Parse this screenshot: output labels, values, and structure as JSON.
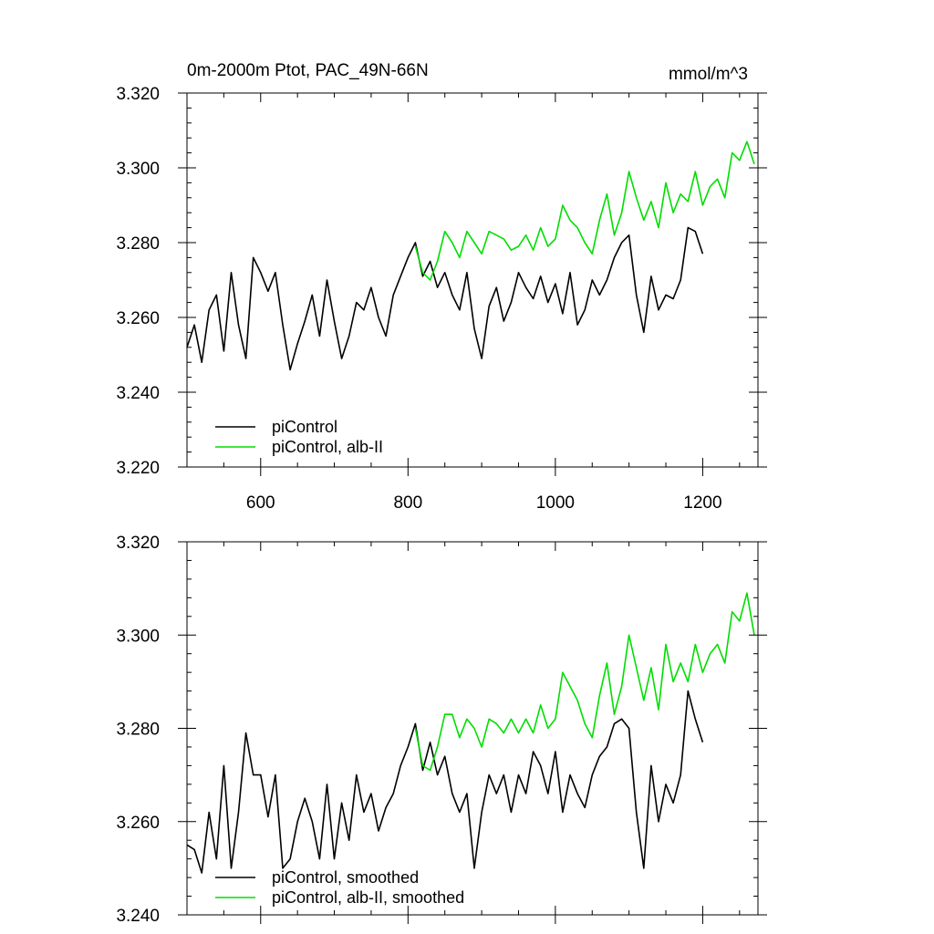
{
  "chart_data": [
    {
      "type": "line",
      "title": "0m-2000m Ptot, PAC_49N-66N",
      "units": "mmol/m^3",
      "xlim": [
        500,
        1275
      ],
      "ylim": [
        3.22,
        3.32
      ],
      "x_ticks": [
        600,
        800,
        1000,
        1200
      ],
      "x_tick_labels": [
        "600",
        "800",
        "1000",
        "1200"
      ],
      "y_ticks": [
        3.22,
        3.24,
        3.26,
        3.28,
        3.3,
        3.32
      ],
      "y_tick_labels": [
        "3.220",
        "3.240",
        "3.260",
        "3.280",
        "3.300",
        "3.320"
      ],
      "legend_placement": "bottom-left",
      "series": [
        {
          "name": "piControl",
          "color": "#000000",
          "x": [
            500,
            510,
            520,
            530,
            540,
            550,
            560,
            570,
            580,
            590,
            600,
            610,
            620,
            630,
            640,
            650,
            660,
            670,
            680,
            690,
            700,
            710,
            720,
            730,
            740,
            750,
            760,
            770,
            780,
            790,
            800,
            810,
            820,
            830,
            840,
            850,
            860,
            870,
            880,
            890,
            900,
            910,
            920,
            930,
            940,
            950,
            960,
            970,
            980,
            990,
            1000,
            1010,
            1020,
            1030,
            1040,
            1050,
            1060,
            1070,
            1080,
            1090,
            1100,
            1110,
            1120,
            1130,
            1140,
            1150,
            1160,
            1170,
            1180,
            1190,
            1200
          ],
          "values": [
            3.252,
            3.258,
            3.248,
            3.262,
            3.266,
            3.251,
            3.272,
            3.258,
            3.249,
            3.276,
            3.272,
            3.267,
            3.272,
            3.258,
            3.246,
            3.253,
            3.259,
            3.266,
            3.255,
            3.27,
            3.259,
            3.249,
            3.255,
            3.264,
            3.262,
            3.268,
            3.26,
            3.255,
            3.266,
            3.271,
            3.276,
            3.28,
            3.271,
            3.275,
            3.268,
            3.272,
            3.266,
            3.262,
            3.272,
            3.257,
            3.249,
            3.263,
            3.268,
            3.259,
            3.264,
            3.272,
            3.268,
            3.265,
            3.271,
            3.264,
            3.269,
            3.261,
            3.272,
            3.258,
            3.262,
            3.27,
            3.266,
            3.27,
            3.276,
            3.28,
            3.282,
            3.266,
            3.256,
            3.271,
            3.262,
            3.266,
            3.265,
            3.27,
            3.284,
            3.283,
            3.277
          ]
        },
        {
          "name": "piControl, alb-II",
          "color": "#00dd00",
          "x": [
            810,
            820,
            830,
            840,
            850,
            860,
            870,
            880,
            890,
            900,
            910,
            920,
            930,
            940,
            950,
            960,
            970,
            980,
            990,
            1000,
            1010,
            1020,
            1030,
            1040,
            1050,
            1060,
            1070,
            1080,
            1090,
            1100,
            1110,
            1120,
            1130,
            1140,
            1150,
            1160,
            1170,
            1180,
            1190,
            1200,
            1210,
            1220,
            1230,
            1240,
            1250,
            1260,
            1270
          ],
          "values": [
            3.279,
            3.272,
            3.27,
            3.275,
            3.283,
            3.28,
            3.276,
            3.283,
            3.28,
            3.277,
            3.283,
            3.282,
            3.281,
            3.278,
            3.279,
            3.282,
            3.278,
            3.284,
            3.279,
            3.281,
            3.29,
            3.286,
            3.284,
            3.28,
            3.277,
            3.286,
            3.293,
            3.282,
            3.288,
            3.299,
            3.292,
            3.286,
            3.291,
            3.284,
            3.296,
            3.288,
            3.293,
            3.291,
            3.299,
            3.29,
            3.295,
            3.297,
            3.292,
            3.304,
            3.302,
            3.307,
            3.301
          ]
        }
      ]
    },
    {
      "type": "line",
      "title": "",
      "units": "",
      "xlim": [
        500,
        1275
      ],
      "ylim": [
        3.24,
        3.32
      ],
      "x_ticks": [
        600,
        800,
        1000,
        1200
      ],
      "x_tick_labels": [
        "",
        "",
        "",
        ""
      ],
      "y_ticks": [
        3.24,
        3.26,
        3.28,
        3.3,
        3.32
      ],
      "y_tick_labels": [
        "3.240",
        "3.260",
        "3.280",
        "3.300",
        "3.320"
      ],
      "legend_placement": "bottom-left",
      "series": [
        {
          "name": "piControl, smoothed",
          "color": "#000000",
          "x": [
            500,
            510,
            520,
            530,
            540,
            550,
            560,
            570,
            580,
            590,
            600,
            610,
            620,
            630,
            640,
            650,
            660,
            670,
            680,
            690,
            700,
            710,
            720,
            730,
            740,
            750,
            760,
            770,
            780,
            790,
            800,
            810,
            820,
            830,
            840,
            850,
            860,
            870,
            880,
            890,
            900,
            910,
            920,
            930,
            940,
            950,
            960,
            970,
            980,
            990,
            1000,
            1010,
            1020,
            1030,
            1040,
            1050,
            1060,
            1070,
            1080,
            1090,
            1100,
            1110,
            1120,
            1130,
            1140,
            1150,
            1160,
            1170,
            1180,
            1190,
            1200
          ],
          "values": [
            3.255,
            3.254,
            3.249,
            3.262,
            3.252,
            3.272,
            3.25,
            3.262,
            3.279,
            3.27,
            3.27,
            3.261,
            3.27,
            3.25,
            3.252,
            3.26,
            3.265,
            3.26,
            3.252,
            3.268,
            3.252,
            3.264,
            3.256,
            3.27,
            3.262,
            3.266,
            3.258,
            3.263,
            3.266,
            3.272,
            3.276,
            3.281,
            3.271,
            3.277,
            3.27,
            3.274,
            3.266,
            3.262,
            3.266,
            3.25,
            3.262,
            3.27,
            3.266,
            3.27,
            3.262,
            3.27,
            3.266,
            3.275,
            3.272,
            3.266,
            3.275,
            3.262,
            3.27,
            3.266,
            3.263,
            3.27,
            3.274,
            3.276,
            3.281,
            3.282,
            3.28,
            3.262,
            3.25,
            3.272,
            3.26,
            3.268,
            3.264,
            3.27,
            3.288,
            3.282,
            3.277
          ]
        },
        {
          "name": "piControl, alb-II, smoothed",
          "color": "#00dd00",
          "x": [
            810,
            820,
            830,
            840,
            850,
            860,
            870,
            880,
            890,
            900,
            910,
            920,
            930,
            940,
            950,
            960,
            970,
            980,
            990,
            1000,
            1010,
            1020,
            1030,
            1040,
            1050,
            1060,
            1070,
            1080,
            1090,
            1100,
            1110,
            1120,
            1130,
            1140,
            1150,
            1160,
            1170,
            1180,
            1190,
            1200,
            1210,
            1220,
            1230,
            1240,
            1250,
            1260,
            1270
          ],
          "values": [
            3.28,
            3.272,
            3.271,
            3.276,
            3.283,
            3.283,
            3.278,
            3.282,
            3.28,
            3.276,
            3.282,
            3.281,
            3.279,
            3.282,
            3.279,
            3.282,
            3.279,
            3.285,
            3.28,
            3.282,
            3.292,
            3.289,
            3.286,
            3.281,
            3.278,
            3.287,
            3.294,
            3.283,
            3.289,
            3.3,
            3.293,
            3.286,
            3.293,
            3.284,
            3.298,
            3.29,
            3.294,
            3.29,
            3.298,
            3.292,
            3.296,
            3.298,
            3.294,
            3.305,
            3.303,
            3.309,
            3.3
          ]
        }
      ]
    }
  ]
}
